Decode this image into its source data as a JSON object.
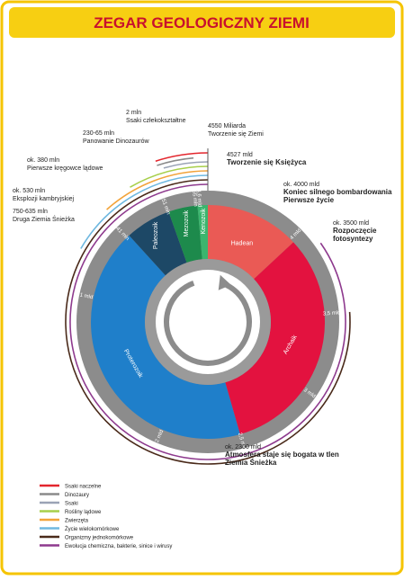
{
  "header": {
    "title": "ZEGAR GEOLOGICZNY ZIEMI"
  },
  "eras": [
    {
      "label": "Hadean",
      "color": "#ea5a55"
    },
    {
      "label": "Archaik",
      "color": "#e3123f"
    },
    {
      "label": "Proterozoik",
      "color": "#1f7fca"
    },
    {
      "label": "Paleozoik",
      "color": "#1d4866"
    },
    {
      "label": "Mezozoik",
      "color": "#1d8a4c"
    },
    {
      "label": "Kenozoik",
      "color": "#3bb56e"
    }
  ],
  "ring_labels": [
    "4,6 mld",
    "4 mld",
    "3,5 mld",
    "3 mld",
    "2,5 mld",
    "2 mld",
    "1 mld",
    "541 mln",
    "251 mln",
    "65 mln"
  ],
  "annotations": [
    {
      "lines": [
        "2 mln",
        "Ssaki człekokształtne"
      ]
    },
    {
      "lines": [
        "4550 Miliarda",
        "Tworzenie się Ziemi"
      ]
    },
    {
      "lines": [
        "230-65 mln",
        "Panowanie Dinozaurów"
      ]
    },
    {
      "lines": [
        "4527 mld",
        "Tworzenie się Księżyca"
      ]
    },
    {
      "lines": [
        "ok. 380 mln",
        "Pierwsze kręgowce lądowe"
      ]
    },
    {
      "lines": [
        "ok. 4000 mld",
        "Koniec silnego bombardowania",
        "Pierwsze życie"
      ]
    },
    {
      "lines": [
        "ok. 530 mln",
        "Eksplozji kambryjskiej"
      ]
    },
    {
      "lines": [
        "750-635 mln",
        "Druga Ziemia Śnieżka"
      ]
    },
    {
      "lines": [
        "ok. 3500 mld",
        "Rozpoczęcie",
        "fotosyntezy"
      ]
    },
    {
      "lines": [
        "ok. 2300 mld",
        "Atmosfera staje się bogata w tlen",
        "Ziemia Śnieżka"
      ]
    }
  ],
  "legend": [
    {
      "label": "Ssaki naczelne",
      "color": "#e3262d"
    },
    {
      "label": "Dinozaury",
      "color": "#8a8a8a"
    },
    {
      "label": "Ssaki",
      "color": "#9aa3b5"
    },
    {
      "label": "Rośliny lądowe",
      "color": "#a7cf4a"
    },
    {
      "label": "Zwierzęta",
      "color": "#f2a33a"
    },
    {
      "label": "Życie wielokomórkowe",
      "color": "#6fb8e0"
    },
    {
      "label": "Organizmy jednokomórkowe",
      "color": "#4a2a1a"
    },
    {
      "label": "Ewolucja chemiczna, bakterie, sinice i wirusy",
      "color": "#8e3a8e"
    }
  ]
}
